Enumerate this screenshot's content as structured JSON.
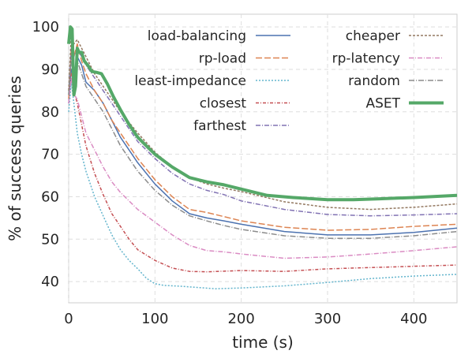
{
  "chart_data": {
    "type": "line",
    "xlabel": "time (s)",
    "ylabel": "% of success queries",
    "xlim": [
      0,
      450
    ],
    "ylim": [
      35,
      103
    ],
    "xticks": [
      0,
      100,
      200,
      300,
      400
    ],
    "yticks": [
      40,
      50,
      60,
      70,
      80,
      90,
      100
    ],
    "grid": true,
    "legend": "top-right",
    "series": [
      {
        "name": "load-balancing",
        "color": "#4c72b0",
        "dash": "solid",
        "width": 1.5,
        "x": [
          0,
          3,
          6,
          10,
          15,
          20,
          30,
          40,
          50,
          60,
          80,
          100,
          120,
          140,
          160,
          180,
          200,
          250,
          300,
          350,
          400,
          450
        ],
        "y": [
          82,
          90,
          88,
          93,
          91,
          87,
          85,
          82,
          78,
          74,
          68,
          63,
          59,
          56,
          55,
          54.3,
          53.5,
          51.8,
          51,
          51,
          51.6,
          52.6
        ]
      },
      {
        "name": "rp-load",
        "color": "#dd8452",
        "dash": "8,3",
        "width": 1.5,
        "x": [
          0,
          3,
          6,
          10,
          15,
          20,
          30,
          40,
          50,
          60,
          80,
          100,
          120,
          140,
          160,
          180,
          200,
          250,
          300,
          350,
          400,
          450
        ],
        "y": [
          83,
          95,
          93,
          96,
          92,
          89,
          85,
          82,
          78,
          75,
          69,
          64,
          60,
          57,
          56.3,
          55.3,
          54.3,
          52.8,
          52.1,
          52.3,
          53,
          53.5
        ]
      },
      {
        "name": "least-impedance",
        "color": "#64b5cd",
        "dash": "2,2",
        "width": 1.5,
        "x": [
          0,
          3,
          6,
          10,
          15,
          20,
          30,
          40,
          50,
          60,
          70,
          80,
          90,
          100,
          110,
          130,
          150,
          170,
          200,
          250,
          300,
          350,
          400,
          450
        ],
        "y": [
          80,
          87,
          82,
          75,
          70,
          66,
          60,
          55.5,
          51,
          47.5,
          45,
          43,
          40.8,
          39.5,
          39.1,
          38.9,
          38.6,
          38.3,
          38.5,
          39,
          39.8,
          40.7,
          41.3,
          41.7
        ]
      },
      {
        "name": "closest",
        "color": "#c44e52",
        "dash": "4,2,1,2",
        "width": 1.5,
        "x": [
          0,
          3,
          6,
          10,
          15,
          20,
          30,
          40,
          50,
          60,
          70,
          80,
          100,
          120,
          140,
          160,
          200,
          250,
          300,
          350,
          400,
          450
        ],
        "y": [
          85,
          89,
          85,
          82,
          77,
          72,
          65.5,
          60.5,
          56,
          53,
          50,
          47.5,
          45,
          43.2,
          42.4,
          42.3,
          42.6,
          42.4,
          43,
          43.3,
          43.6,
          43.9
        ]
      },
      {
        "name": "farthest",
        "color": "#8172b3",
        "dash": "6,2,1,2",
        "width": 1.5,
        "x": [
          0,
          3,
          6,
          10,
          15,
          20,
          30,
          40,
          50,
          60,
          80,
          100,
          120,
          140,
          160,
          180,
          200,
          250,
          300,
          350,
          400,
          450
        ],
        "y": [
          84,
          95,
          93,
          95,
          93,
          91,
          88,
          85,
          82,
          79,
          73,
          69,
          65.5,
          63,
          61.5,
          60.5,
          59,
          57,
          55.8,
          55.5,
          55.7,
          56
        ]
      },
      {
        "name": "cheaper",
        "color": "#937860",
        "dash": "3,2",
        "width": 1.5,
        "x": [
          0,
          3,
          6,
          10,
          15,
          20,
          30,
          40,
          50,
          60,
          80,
          100,
          120,
          140,
          160,
          180,
          200,
          250,
          300,
          350,
          400,
          450
        ],
        "y": [
          85,
          98,
          96,
          97,
          95,
          93,
          89,
          86,
          83,
          80,
          75,
          70.5,
          67,
          64.5,
          63,
          62,
          61.2,
          58.8,
          57.5,
          57,
          57.5,
          58.3
        ]
      },
      {
        "name": "rp-latency",
        "color": "#da8bc3",
        "dash": "6,2,1,2",
        "width": 1.5,
        "x": [
          0,
          3,
          6,
          10,
          15,
          20,
          30,
          40,
          50,
          60,
          80,
          100,
          120,
          140,
          160,
          180,
          200,
          250,
          300,
          350,
          400,
          450
        ],
        "y": [
          82,
          88,
          84,
          83,
          79,
          75,
          71,
          67,
          63.5,
          61,
          57,
          54,
          51,
          48.5,
          47.3,
          47,
          46.5,
          45.5,
          45.8,
          46.5,
          47.3,
          48.2
        ]
      },
      {
        "name": "random",
        "color": "#8c8c8c",
        "dash": "7,2,1,2",
        "width": 1.5,
        "x": [
          0,
          3,
          6,
          10,
          15,
          20,
          30,
          40,
          50,
          60,
          80,
          100,
          120,
          140,
          160,
          180,
          200,
          250,
          300,
          350,
          400,
          450
        ],
        "y": [
          84,
          92,
          90,
          92,
          89,
          86,
          83,
          80,
          76,
          72,
          66,
          61.5,
          58,
          55.5,
          54.3,
          53.2,
          52.3,
          50.8,
          50.2,
          50.2,
          50.8,
          51.8
        ]
      },
      {
        "name": "ASET",
        "color": "#55a868",
        "dash": "solid",
        "width": 4,
        "x": [
          0,
          2,
          4,
          6,
          8,
          10,
          12,
          15,
          18,
          22,
          27,
          32,
          38,
          45,
          52,
          60,
          70,
          80,
          90,
          100,
          120,
          140,
          160,
          180,
          200,
          230,
          260,
          300,
          330,
          360,
          400,
          450
        ],
        "y": [
          96,
          100,
          99.5,
          84,
          86,
          95,
          94,
          94,
          92,
          91,
          89.5,
          89.3,
          89,
          86.5,
          83.5,
          80.5,
          77,
          74,
          72,
          70,
          67,
          64.5,
          63.5,
          62.8,
          61.8,
          60.3,
          59.8,
          59.3,
          59.3,
          59.5,
          59.8,
          60.3
        ]
      }
    ]
  }
}
